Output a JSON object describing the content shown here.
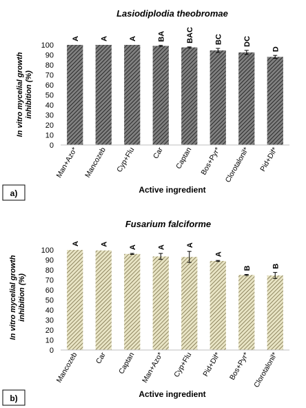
{
  "chart_data": [
    {
      "type": "bar",
      "panel_label": "a)",
      "title": "Lasiodiplodia theobromae",
      "xlabel": "Active ingredient",
      "ylabel": "In vitro mycelial growth inhibition (%)",
      "ylim": [
        0,
        100
      ],
      "yticks": [
        0,
        10,
        20,
        30,
        40,
        50,
        60,
        70,
        80,
        90,
        100
      ],
      "grid": false,
      "categories": [
        "Man+Azo*",
        "Mancozeb",
        "Cyp+Flu",
        "Car",
        "Captan",
        "Bos+Pyr*",
        "Clorotalonil*",
        "Pid+Dif*"
      ],
      "values": [
        100,
        100,
        100,
        99,
        97.5,
        94.5,
        92.5,
        88
      ],
      "errors": [
        0,
        0,
        0,
        0.5,
        0.5,
        2,
        2,
        1.5
      ],
      "letters": [
        "A",
        "A",
        "A",
        "BA",
        "BAC",
        "BC",
        "DC",
        "D"
      ],
      "bar_fill": "#808080",
      "hatch_color": "#2a2a2a"
    },
    {
      "type": "bar",
      "panel_label": "b)",
      "title": "Fusarium falciforme",
      "xlabel": "Active ingredient",
      "ylabel": "In vitro mycelial growth inhibition (%)",
      "ylim": [
        0,
        100
      ],
      "yticks": [
        0,
        10,
        20,
        30,
        40,
        50,
        60,
        70,
        80,
        90,
        100
      ],
      "grid": false,
      "categories": [
        "Mancozeb",
        "Car",
        "Captan",
        "Man+Azo*",
        "Cyp+Flu",
        "Pid+Dif*",
        "Bos+Pyr*",
        "Clorotalonil*"
      ],
      "values": [
        100,
        99.5,
        96,
        93.5,
        93,
        89,
        75,
        74.5
      ],
      "errors": [
        0,
        0,
        0.5,
        3,
        5.5,
        0.5,
        0.5,
        3
      ],
      "letters": [
        "A",
        "A",
        "A",
        "A",
        "A",
        "A",
        "B",
        "B"
      ],
      "bar_fill": "#e8e4c4",
      "hatch_color": "#6b6038"
    }
  ]
}
